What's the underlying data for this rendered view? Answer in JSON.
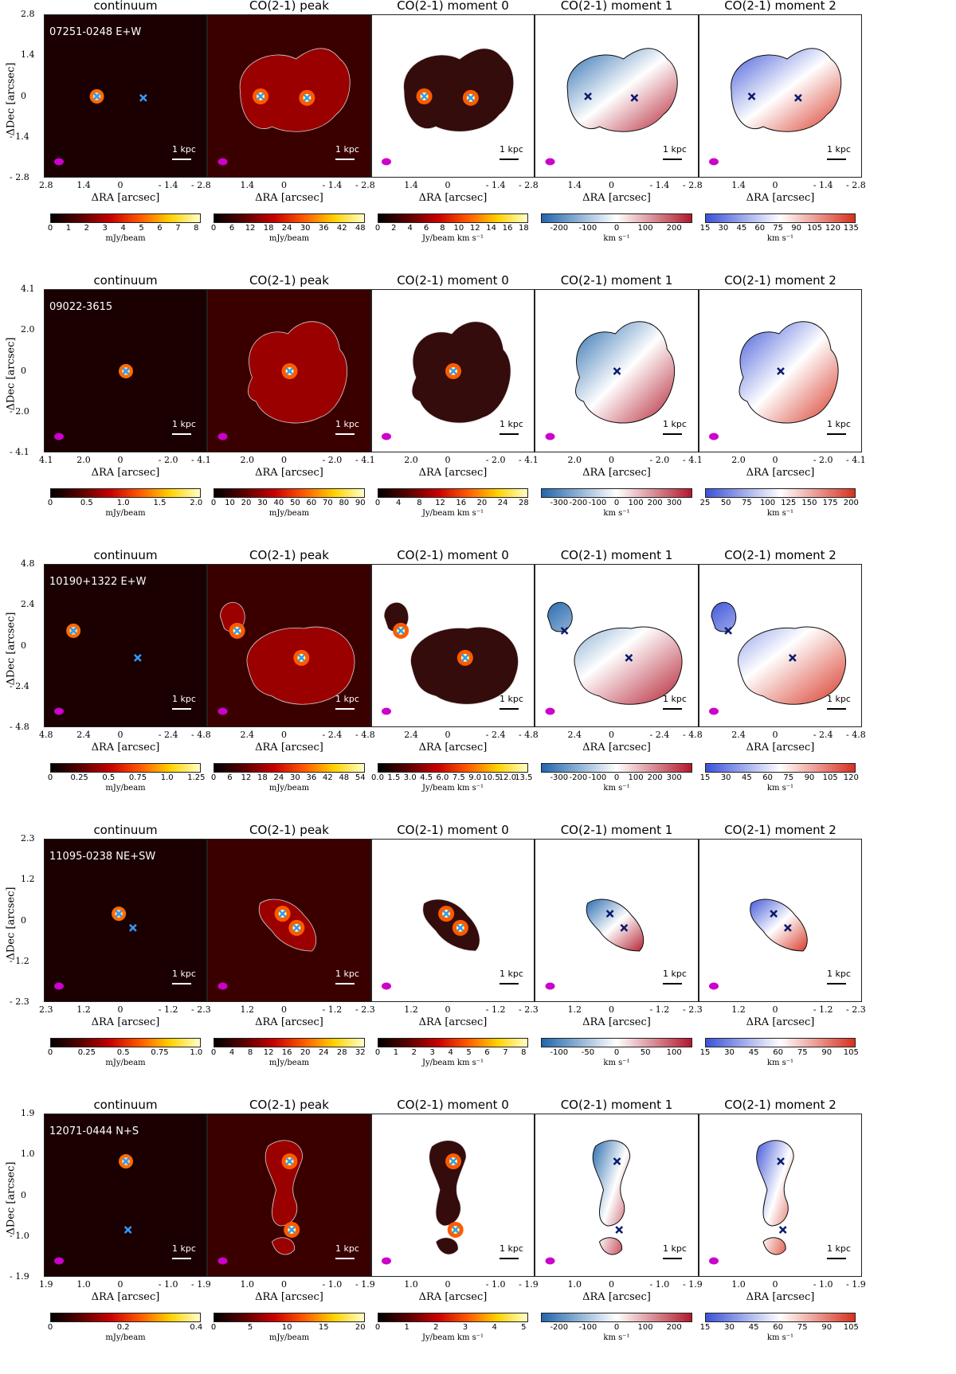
{
  "panel_titles": [
    "continuum",
    "CO(2-1) peak",
    "CO(2-1) moment 0",
    "CO(2-1) moment 1",
    "CO(2-1) moment 2"
  ],
  "axis_labels": {
    "x": "ΔRA [arcsec]",
    "y": "ΔDec [arcsec]"
  },
  "scale_bar": "1 kpc",
  "units": [
    "mJy/beam",
    "mJy/beam",
    "Jy/beam km s⁻¹",
    "km s⁻¹",
    "km s⁻¹"
  ],
  "colors": {
    "heat": [
      "#000000",
      "#5a0000",
      "#c80000",
      "#ff5a00",
      "#ffd200",
      "#ffffc8"
    ],
    "diverging": [
      "#2166ac",
      "#ffffff",
      "#b2182b"
    ],
    "moment2": [
      "#3a52d8",
      "#ffffff",
      "#d7301f"
    ],
    "beam": "#cc00cc",
    "marker_light": "#3399ff",
    "marker_dark": "#0a1a6e"
  },
  "chart_data": [
    {
      "type": "heatmap",
      "galaxy": "07251-0248 E+W",
      "xlim": [
        2.8,
        -2.8
      ],
      "ylim": [
        -2.8,
        2.8
      ],
      "xticks": [
        "2.8",
        "1.4",
        "0",
        "- 1.4",
        "- 2.8"
      ],
      "yticks": [
        "2.8",
        "1.4",
        "0",
        "- 1.4",
        "- 2.8"
      ],
      "colorbars": [
        [
          "0",
          "1",
          "2",
          "3",
          "4",
          "5",
          "6",
          "7",
          "8"
        ],
        [
          "0",
          "6",
          "12",
          "18",
          "24",
          "30",
          "36",
          "42",
          "48"
        ],
        [
          "0",
          "2",
          "4",
          "6",
          "8",
          "10",
          "12",
          "14",
          "16",
          "18"
        ],
        [
          "-200",
          "-100",
          "0",
          "100",
          "200"
        ],
        [
          "15",
          "30",
          "45",
          "60",
          "75",
          "90",
          "105",
          "120",
          "135"
        ]
      ],
      "nuclei": [
        [
          1.0,
          0.0
        ],
        [
          -0.6,
          -0.05
        ]
      ]
    },
    {
      "type": "heatmap",
      "galaxy": "09022-3615",
      "xlim": [
        4.1,
        -4.1
      ],
      "ylim": [
        -4.1,
        4.1
      ],
      "xticks": [
        "4.1",
        "2.0",
        "0",
        "- 2.0",
        "- 4.1"
      ],
      "yticks": [
        "4.1",
        "2.0",
        "0",
        "- 2.0",
        "- 4.1"
      ],
      "colorbars": [
        [
          "0",
          "0.5",
          "1.0",
          "1.5",
          "2.0"
        ],
        [
          "0",
          "10",
          "20",
          "30",
          "40",
          "50",
          "60",
          "70",
          "80",
          "90"
        ],
        [
          "0",
          "4",
          "8",
          "12",
          "16",
          "20",
          "24",
          "28"
        ],
        [
          "-300",
          "-200",
          "-100",
          "0",
          "100",
          "200",
          "300"
        ],
        [
          "25",
          "50",
          "75",
          "100",
          "125",
          "150",
          "175",
          "200"
        ]
      ],
      "nuclei": [
        [
          0.0,
          0.0
        ]
      ]
    },
    {
      "type": "heatmap",
      "galaxy": "10190+1322 E+W",
      "xlim": [
        4.8,
        -4.8
      ],
      "ylim": [
        -4.8,
        4.8
      ],
      "xticks": [
        "4.8",
        "2.4",
        "0",
        "- 2.4",
        "- 4.8"
      ],
      "yticks": [
        "4.8",
        "2.4",
        "0",
        "- 2.4",
        "- 4.8"
      ],
      "colorbars": [
        [
          "0",
          "0.25",
          "0.5",
          "0.75",
          "1.0",
          "1.25"
        ],
        [
          "0",
          "6",
          "12",
          "18",
          "24",
          "30",
          "36",
          "42",
          "48",
          "54"
        ],
        [
          "0.0",
          "1.5",
          "3.0",
          "4.5",
          "6.0",
          "7.5",
          "9.0",
          "10.5",
          "12.0",
          "13.5"
        ],
        [
          "-300",
          "-200",
          "-100",
          "0",
          "100",
          "200",
          "300"
        ],
        [
          "15",
          "30",
          "45",
          "60",
          "75",
          "90",
          "105",
          "120"
        ]
      ],
      "nuclei": [
        [
          3.1,
          0.9
        ],
        [
          -0.7,
          -0.7
        ]
      ]
    },
    {
      "type": "heatmap",
      "galaxy": "11095-0238 NE+SW",
      "xlim": [
        2.3,
        -2.3
      ],
      "ylim": [
        -2.3,
        2.3
      ],
      "xticks": [
        "2.3",
        "1.2",
        "0",
        "- 1.2",
        "- 2.3"
      ],
      "yticks": [
        "2.3",
        "1.2",
        "0",
        "- 1.2",
        "- 2.3"
      ],
      "colorbars": [
        [
          "0",
          "0.25",
          "0.5",
          "0.75",
          "1.0"
        ],
        [
          "0",
          "4",
          "8",
          "12",
          "16",
          "20",
          "24",
          "28",
          "32"
        ],
        [
          "0",
          "1",
          "2",
          "3",
          "4",
          "5",
          "6",
          "7",
          "8"
        ],
        [
          "-100",
          "-50",
          "0",
          "50",
          "100"
        ],
        [
          "15",
          "30",
          "45",
          "60",
          "75",
          "90",
          "105"
        ]
      ],
      "nuclei": [
        [
          0.2,
          0.2
        ],
        [
          -0.2,
          -0.2
        ]
      ]
    },
    {
      "type": "heatmap",
      "galaxy": "12071-0444 N+S",
      "xlim": [
        1.9,
        -1.9
      ],
      "ylim": [
        -1.9,
        1.9
      ],
      "xticks": [
        "1.9",
        "1.0",
        "0",
        "- 1.0",
        "- 1.9"
      ],
      "yticks": [
        "1.9",
        "1.0",
        "0",
        "- 1.0",
        "- 1.9"
      ],
      "colorbars": [
        [
          "0",
          "0.2",
          "0.4"
        ],
        [
          "0",
          "5",
          "10",
          "15",
          "20"
        ],
        [
          "0",
          "1",
          "2",
          "3",
          "4",
          "5"
        ],
        [
          "-200",
          "-100",
          "0",
          "100",
          "200"
        ],
        [
          "15",
          "30",
          "45",
          "60",
          "75",
          "90",
          "105"
        ]
      ],
      "nuclei": [
        [
          0.0,
          0.8
        ],
        [
          -0.05,
          -0.8
        ]
      ]
    }
  ]
}
